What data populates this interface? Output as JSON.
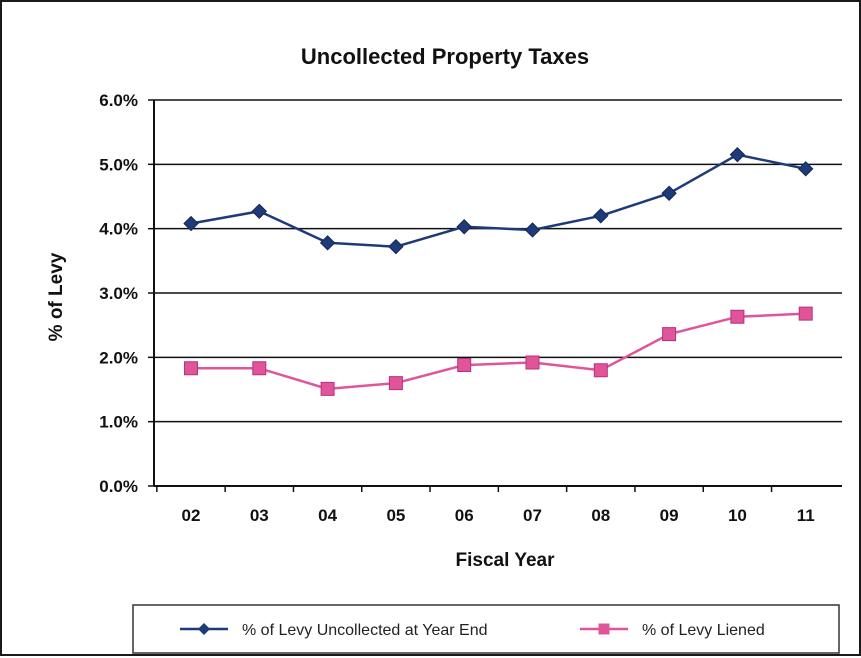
{
  "chart_data": {
    "type": "line",
    "title": "Uncollected Property Taxes",
    "xlabel": "Fiscal Year",
    "ylabel": "% of Levy",
    "categories": [
      "02",
      "03",
      "04",
      "05",
      "06",
      "07",
      "08",
      "09",
      "10",
      "11"
    ],
    "ylim": [
      0,
      6
    ],
    "yticks": [
      0,
      1,
      2,
      3,
      4,
      5,
      6
    ],
    "ytick_labels": [
      "0.0%",
      "1.0%",
      "2.0%",
      "3.0%",
      "4.0%",
      "5.0%",
      "6.0%"
    ],
    "grid": true,
    "legend_position": "bottom",
    "series": [
      {
        "name": "% of Levy Uncollected at Year End",
        "color": "#1f3a7a",
        "marker": "diamond",
        "values": [
          4.08,
          4.27,
          3.78,
          3.72,
          4.03,
          3.98,
          4.2,
          4.55,
          5.15,
          4.93
        ]
      },
      {
        "name": "% of Levy Liened",
        "color": "#e0559a",
        "marker": "square",
        "values": [
          1.83,
          1.83,
          1.51,
          1.6,
          1.88,
          1.92,
          1.8,
          2.36,
          2.63,
          2.68
        ]
      }
    ]
  }
}
